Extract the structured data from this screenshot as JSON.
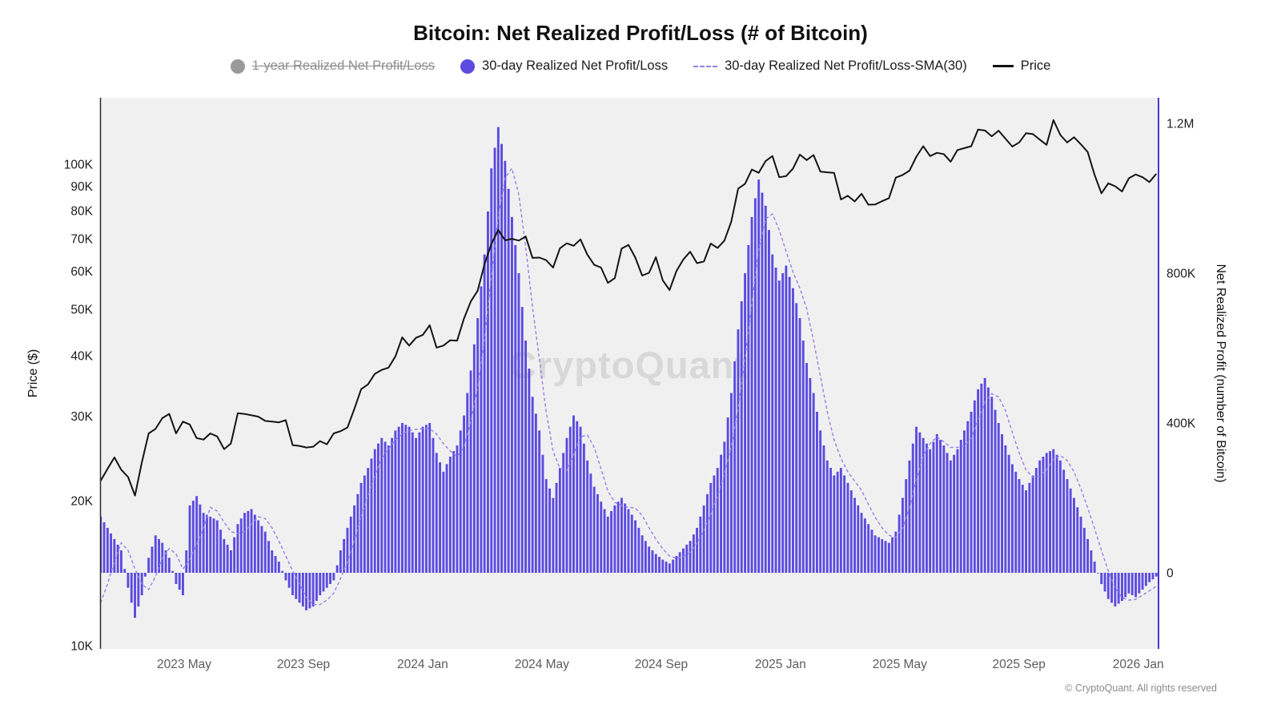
{
  "watermark": "CryptoQuant",
  "footer": "© CryptoQuant. All rights reserved",
  "legend": {
    "items": [
      {
        "label": "1-year Realized Net Profit/Loss",
        "type": "dot",
        "color": "#9a9a9a",
        "disabled": true
      },
      {
        "label": "30-day Realized Net Profit/Loss",
        "type": "dot",
        "color": "#5b4be0",
        "disabled": false
      },
      {
        "label": "30-day Realized Net Profit/Loss-SMA(30)",
        "type": "dashed-line",
        "color": "#8f84ea",
        "disabled": false
      },
      {
        "label": "Price",
        "type": "line",
        "color": "#141414",
        "disabled": false
      }
    ]
  },
  "chart_data": {
    "type": "combo-bar-line",
    "title": "Bitcoin: Net Realized Profit/Loss (# of Bitcoin)",
    "x_axis": {
      "unit": "months since 2023-01-01",
      "start": 1.2,
      "step": 0.2299,
      "ticks": [
        {
          "label": "2023 May",
          "m": 4
        },
        {
          "label": "2023 Sep",
          "m": 8
        },
        {
          "label": "2024 Jan",
          "m": 12
        },
        {
          "label": "2024 May",
          "m": 16
        },
        {
          "label": "2024 Sep",
          "m": 20
        },
        {
          "label": "2025 Jan",
          "m": 24
        },
        {
          "label": "2025 May",
          "m": 28
        },
        {
          "label": "2025 Sep",
          "m": 32
        },
        {
          "label": "2026 Jan",
          "m": 36
        }
      ]
    },
    "left_axis": {
      "title": "Price ($)",
      "scale": "log",
      "unit": "K USD",
      "ticks": [
        {
          "label": "100K",
          "value": 100
        },
        {
          "label": "90K",
          "value": 90
        },
        {
          "label": "80K",
          "value": 80
        },
        {
          "label": "70K",
          "value": 70
        },
        {
          "label": "60K",
          "value": 60
        },
        {
          "label": "50K",
          "value": 50
        },
        {
          "label": "40K",
          "value": 40
        },
        {
          "label": "30K",
          "value": 30
        },
        {
          "label": "20K",
          "value": 20
        },
        {
          "label": "10K",
          "value": 10
        }
      ]
    },
    "right_axis": {
      "title": "Net Realized Profit (number of Bitcoin)",
      "scale": "linear",
      "unit": "K BTC",
      "ticks": [
        {
          "label": "1.2M",
          "value": 1200
        },
        {
          "label": "800K",
          "value": 800
        },
        {
          "label": "400K",
          "value": 400
        },
        {
          "label": "0",
          "value": 0
        }
      ]
    },
    "series": [
      {
        "name": "30-day Realized Net Profit/Loss",
        "type": "bar",
        "axis": "right",
        "unit": "K BTC",
        "color": "#5b4be0",
        "values": [
          150,
          120,
          90,
          60,
          -40,
          -120,
          -60,
          40,
          100,
          80,
          40,
          -30,
          -60,
          180,
          205,
          160,
          150,
          140,
          90,
          60,
          130,
          160,
          170,
          140,
          110,
          60,
          30,
          -20,
          -60,
          -80,
          -100,
          -90,
          -60,
          -40,
          -20,
          60,
          120,
          180,
          240,
          280,
          330,
          360,
          340,
          380,
          400,
          390,
          360,
          390,
          400,
          320,
          270,
          310,
          340,
          420,
          540,
          680,
          850,
          1080,
          1190,
          1100,
          950,
          800,
          620,
          470,
          380,
          250,
          200,
          280,
          360,
          420,
          390,
          300,
          230,
          190,
          150,
          180,
          200,
          170,
          140,
          100,
          70,
          50,
          35,
          25,
          45,
          65,
          85,
          120,
          180,
          240,
          280,
          350,
          480,
          650,
          800,
          950,
          1050,
          980,
          850,
          780,
          820,
          760,
          680,
          560,
          480,
          380,
          300,
          260,
          280,
          240,
          200,
          160,
          130,
          100,
          90,
          80,
          110,
          200,
          300,
          390,
          360,
          330,
          370,
          340,
          300,
          330,
          380,
          430,
          490,
          520,
          470,
          400,
          340,
          290,
          250,
          220,
          260,
          300,
          320,
          330,
          300,
          250,
          200,
          150,
          90,
          30,
          -30,
          -70,
          -90,
          -75,
          -55,
          -65,
          -45,
          -25,
          -10
        ]
      },
      {
        "name": "30-day Realized Net Profit/Loss-SMA(30)",
        "type": "dashed-line",
        "axis": "right",
        "unit": "K BTC",
        "color": "#8f84ea",
        "values": [
          -80,
          -30,
          30,
          80,
          60,
          10,
          -30,
          -45,
          -10,
          40,
          65,
          50,
          10,
          35,
          75,
          120,
          175,
          165,
          135,
          110,
          105,
          110,
          130,
          150,
          145,
          120,
          85,
          45,
          5,
          -30,
          -65,
          -85,
          -85,
          -73,
          -55,
          -15,
          30,
          85,
          150,
          205,
          260,
          305,
          330,
          355,
          370,
          380,
          383,
          385,
          385,
          370,
          345,
          325,
          310,
          335,
          405,
          495,
          625,
          790,
          950,
          1055,
          1080,
          1010,
          870,
          710,
          570,
          430,
          325,
          278,
          273,
          315,
          363,
          368,
          335,
          278,
          218,
          188,
          180,
          175,
          173,
          153,
          120,
          90,
          64,
          45,
          39,
          43,
          55,
          79,
          113,
          156,
          205,
          263,
          338,
          440,
          570,
          720,
          863,
          945,
          958,
          915,
          858,
          803,
          760,
          705,
          620,
          525,
          430,
          355,
          305,
          270,
          245,
          220,
          183,
          148,
          120,
          100,
          95,
          120,
          173,
          250,
          313,
          345,
          363,
          350,
          335,
          335,
          338,
          360,
          408,
          455,
          478,
          470,
          433,
          375,
          320,
          275,
          255,
          258,
          275,
          303,
          313,
          300,
          270,
          225,
          173,
          118,
          60,
          5,
          -40,
          -66,
          -73,
          -71,
          -60,
          -48,
          -36
        ]
      },
      {
        "name": "Price",
        "type": "line",
        "axis": "left",
        "unit": "K USD",
        "color": "#141414",
        "values": [
          22.0,
          23.3,
          24.6,
          23.2,
          22.4,
          20.5,
          24.0,
          27.6,
          28.2,
          29.7,
          30.3,
          27.6,
          29.2,
          28.8,
          27.0,
          26.8,
          27.6,
          27.2,
          25.6,
          26.3,
          30.4,
          30.3,
          30.1,
          29.9,
          29.3,
          29.2,
          29.1,
          29.4,
          26.1,
          26.0,
          25.8,
          25.9,
          26.6,
          26.2,
          27.6,
          27.9,
          28.4,
          31.0,
          34.1,
          34.9,
          36.7,
          37.4,
          37.8,
          39.9,
          43.7,
          42.0,
          43.6,
          44.2,
          46.3,
          41.6,
          42.0,
          43.1,
          43.0,
          47.8,
          51.9,
          54.6,
          62.0,
          68.3,
          73.0,
          69.5,
          70.0,
          69.4,
          70.8,
          63.9,
          64.0,
          63.2,
          61.0,
          66.9,
          68.5,
          67.7,
          69.8,
          64.9,
          61.8,
          61.0,
          56.7,
          58.0,
          66.8,
          68.0,
          64.0,
          58.7,
          59.5,
          64.1,
          57.4,
          54.8,
          60.0,
          63.4,
          65.8,
          62.3,
          62.8,
          68.4,
          67.0,
          69.4,
          76.0,
          89.0,
          91.0,
          97.5,
          96.0,
          101.5,
          104.0,
          94.0,
          94.5,
          98.0,
          104.7,
          102.0,
          104.5,
          96.5,
          96.2,
          96.0,
          84.5,
          86.0,
          83.7,
          86.8,
          82.4,
          82.5,
          83.8,
          85.0,
          93.8,
          95.0,
          97.0,
          103.7,
          109.0,
          104.0,
          105.6,
          105.0,
          101.2,
          107.0,
          108.0,
          109.0,
          118.0,
          117.5,
          114.3,
          117.4,
          113.0,
          108.8,
          111.0,
          116.0,
          115.5,
          112.5,
          109.7,
          123.5,
          115.0,
          111.0,
          113.8,
          110.0,
          106.0,
          95.0,
          87.0,
          91.3,
          90.0,
          87.8,
          93.5,
          95.2,
          94.0,
          91.8,
          95.5
        ]
      }
    ]
  }
}
